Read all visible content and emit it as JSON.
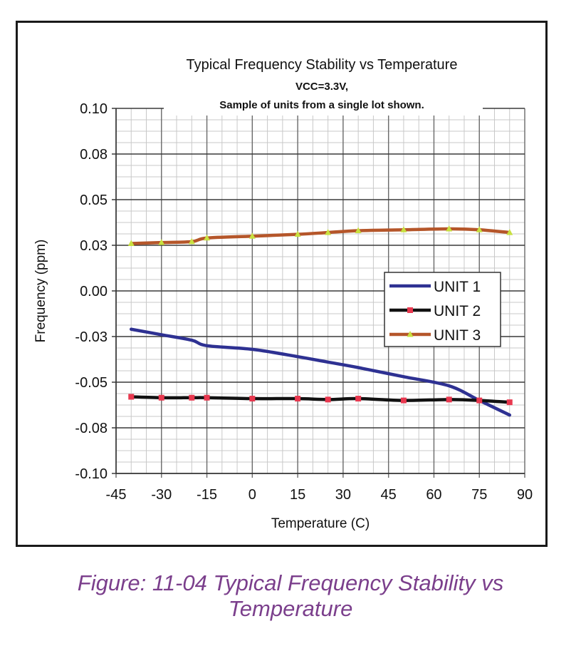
{
  "chart_data": {
    "type": "line",
    "title": "Typical Frequency Stability vs Temperature",
    "subtitle_lines": [
      "VCC=3.3V,",
      "Sample of units from a single lot shown."
    ],
    "xlabel": "Temperature (C)",
    "ylabel": "Frequency (ppm)",
    "xlim": [
      -45,
      90
    ],
    "ylim": [
      -0.1,
      0.1
    ],
    "x_ticks": [
      "-45",
      "-30",
      "-15",
      "0",
      "15",
      "30",
      "45",
      "60",
      "75",
      "90"
    ],
    "y_ticks": [
      "0.10",
      "0.08",
      "0.05",
      "0.03",
      "0.00",
      "-0.03",
      "-0.05",
      "-0.08",
      "-0.10"
    ],
    "grid": true,
    "legend_position": "right",
    "series": [
      {
        "name": "UNIT 1",
        "color": "#2e3192",
        "marker": "triangle",
        "x": [
          -40,
          -30,
          -20,
          -15,
          0,
          15,
          25,
          35,
          50,
          65,
          75,
          85
        ],
        "y": [
          -0.021,
          -0.024,
          -0.027,
          -0.03,
          -0.032,
          -0.036,
          -0.039,
          -0.042,
          -0.047,
          -0.052,
          -0.06,
          -0.068
        ]
      },
      {
        "name": "UNIT 2",
        "color": "#111111",
        "marker": "square",
        "x": [
          -40,
          -30,
          -20,
          -15,
          0,
          15,
          25,
          35,
          50,
          65,
          75,
          85
        ],
        "y": [
          -0.058,
          -0.0585,
          -0.0585,
          -0.0585,
          -0.059,
          -0.059,
          -0.0595,
          -0.059,
          -0.06,
          -0.0595,
          -0.06,
          -0.061
        ]
      },
      {
        "name": "UNIT 3",
        "color": "#b5562a",
        "marker": "triangle",
        "x": [
          -40,
          -30,
          -20,
          -15,
          0,
          15,
          25,
          35,
          50,
          65,
          75,
          85
        ],
        "y": [
          0.026,
          0.0265,
          0.027,
          0.029,
          0.03,
          0.031,
          0.032,
          0.033,
          0.0335,
          0.034,
          0.0335,
          0.032
        ]
      }
    ]
  },
  "caption": {
    "line1": "Figure: 11-04 Typical Frequency Stability vs",
    "line2": "Temperature"
  }
}
